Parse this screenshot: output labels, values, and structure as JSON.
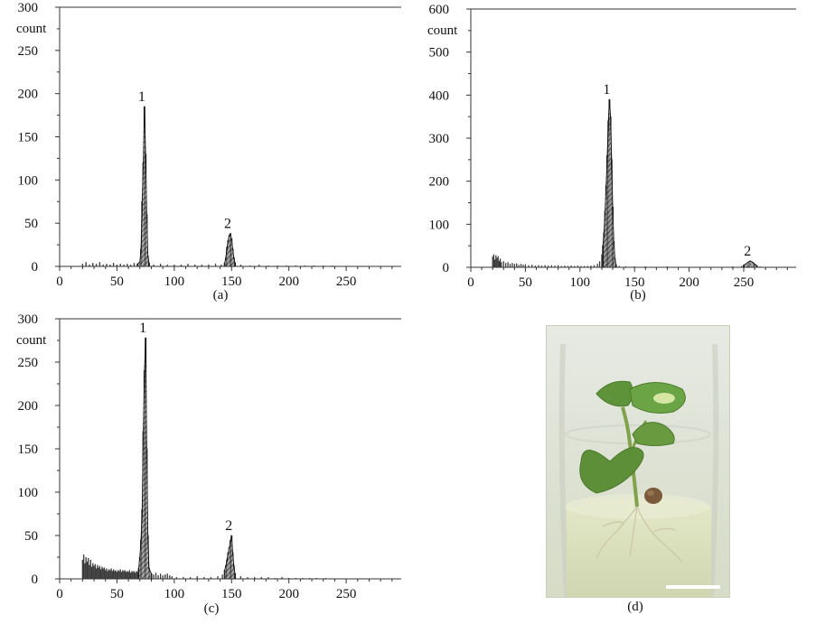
{
  "chart_data": [
    {
      "type": "bar",
      "panel": "(a)",
      "title": "",
      "xlabel": "",
      "ylabel": "count",
      "xlim": [
        0,
        298
      ],
      "ylim": [
        0,
        300
      ],
      "xticks": [
        0,
        50,
        100,
        150,
        200,
        250
      ],
      "yticks": [
        0,
        50,
        100,
        150,
        200,
        250,
        300
      ],
      "annotations": [
        {
          "label": "1",
          "x": 74,
          "y": 185
        },
        {
          "label": "2",
          "x": 149,
          "y": 38
        }
      ],
      "series": [
        {
          "values": [
            [
              20,
              3
            ],
            [
              23,
              5
            ],
            [
              26,
              2
            ],
            [
              29,
              4
            ],
            [
              32,
              3
            ],
            [
              35,
              5
            ],
            [
              38,
              2
            ],
            [
              41,
              3
            ],
            [
              44,
              2
            ],
            [
              47,
              4
            ],
            [
              50,
              2
            ],
            [
              53,
              3
            ],
            [
              56,
              2
            ],
            [
              59,
              3
            ],
            [
              62,
              2
            ],
            [
              65,
              4
            ],
            [
              68,
              3
            ],
            [
              70,
              5
            ],
            [
              71,
              20
            ],
            [
              72,
              75
            ],
            [
              73,
              120
            ],
            [
              74,
              185
            ],
            [
              75,
              130
            ],
            [
              76,
              60
            ],
            [
              77,
              12
            ],
            [
              78,
              4
            ],
            [
              82,
              2
            ],
            [
              88,
              3
            ],
            [
              94,
              2
            ],
            [
              100,
              2
            ],
            [
              106,
              2
            ],
            [
              112,
              3
            ],
            [
              118,
              2
            ],
            [
              124,
              2
            ],
            [
              130,
              2
            ],
            [
              136,
              3
            ],
            [
              141,
              2
            ],
            [
              144,
              4
            ],
            [
              145,
              10
            ],
            [
              146,
              22
            ],
            [
              147,
              30
            ],
            [
              148,
              36
            ],
            [
              149,
              38
            ],
            [
              150,
              32
            ],
            [
              151,
              20
            ],
            [
              152,
              10
            ],
            [
              153,
              4
            ],
            [
              158,
              2
            ],
            [
              166,
              1
            ],
            [
              174,
              2
            ],
            [
              182,
              1
            ],
            [
              190,
              1
            ],
            [
              198,
              1
            ],
            [
              206,
              1
            ],
            [
              214,
              1
            ],
            [
              222,
              1
            ],
            [
              230,
              1
            ],
            [
              238,
              1
            ]
          ]
        }
      ]
    },
    {
      "type": "bar",
      "panel": "(b)",
      "title": "",
      "xlabel": "",
      "ylabel": "count",
      "xlim": [
        0,
        298
      ],
      "ylim": [
        0,
        600
      ],
      "xticks": [
        0,
        50,
        100,
        150,
        200,
        250
      ],
      "yticks": [
        0,
        100,
        200,
        300,
        400,
        500,
        600
      ],
      "annotations": [
        {
          "label": "1",
          "x": 127,
          "y": 390
        },
        {
          "label": "2",
          "x": 256,
          "y": 15
        }
      ],
      "series": [
        {
          "values": [
            [
              20,
              25
            ],
            [
              21,
              30
            ],
            [
              22,
              18
            ],
            [
              23,
              28
            ],
            [
              24,
              22
            ],
            [
              25,
              26
            ],
            [
              26,
              15
            ],
            [
              27,
              20
            ],
            [
              28,
              12
            ],
            [
              30,
              14
            ],
            [
              32,
              10
            ],
            [
              34,
              12
            ],
            [
              36,
              8
            ],
            [
              38,
              10
            ],
            [
              40,
              8
            ],
            [
              42,
              9
            ],
            [
              44,
              6
            ],
            [
              46,
              8
            ],
            [
              48,
              6
            ],
            [
              50,
              7
            ],
            [
              53,
              5
            ],
            [
              56,
              6
            ],
            [
              59,
              4
            ],
            [
              62,
              5
            ],
            [
              65,
              4
            ],
            [
              68,
              5
            ],
            [
              71,
              4
            ],
            [
              74,
              5
            ],
            [
              77,
              4
            ],
            [
              80,
              5
            ],
            [
              83,
              3
            ],
            [
              86,
              4
            ],
            [
              89,
              3
            ],
            [
              92,
              4
            ],
            [
              95,
              3
            ],
            [
              98,
              4
            ],
            [
              101,
              3
            ],
            [
              104,
              3
            ],
            [
              107,
              3
            ],
            [
              110,
              4
            ],
            [
              113,
              5
            ],
            [
              116,
              8
            ],
            [
              118,
              14
            ],
            [
              120,
              30
            ],
            [
              121,
              50
            ],
            [
              122,
              80
            ],
            [
              123,
              130
            ],
            [
              124,
              190
            ],
            [
              125,
              260
            ],
            [
              126,
              340
            ],
            [
              127,
              390
            ],
            [
              128,
              350
            ],
            [
              129,
              250
            ],
            [
              130,
              140
            ],
            [
              131,
              60
            ],
            [
              132,
              20
            ],
            [
              133,
              6
            ],
            [
              136,
              3
            ],
            [
              142,
              2
            ],
            [
              150,
              2
            ],
            [
              160,
              2
            ],
            [
              170,
              1
            ],
            [
              180,
              2
            ],
            [
              190,
              1
            ],
            [
              200,
              1
            ],
            [
              210,
              1
            ],
            [
              220,
              1
            ],
            [
              230,
              1
            ],
            [
              240,
              2
            ],
            [
              248,
              3
            ],
            [
              250,
              5
            ],
            [
              252,
              8
            ],
            [
              254,
              12
            ],
            [
              256,
              15
            ],
            [
              258,
              12
            ],
            [
              260,
              8
            ],
            [
              262,
              4
            ],
            [
              265,
              2
            ]
          ]
        }
      ]
    },
    {
      "type": "bar",
      "panel": "(c)",
      "title": "",
      "xlabel": "",
      "ylabel": "count",
      "xlim": [
        0,
        298
      ],
      "ylim": [
        0,
        300
      ],
      "xticks": [
        0,
        50,
        100,
        150,
        200,
        250
      ],
      "yticks": [
        0,
        50,
        100,
        150,
        200,
        250,
        300
      ],
      "annotations": [
        {
          "label": "1",
          "x": 75,
          "y": 278
        },
        {
          "label": "2",
          "x": 150,
          "y": 50
        }
      ],
      "series": [
        {
          "values": [
            [
              20,
              22
            ],
            [
              21,
              28
            ],
            [
              22,
              18
            ],
            [
              23,
              25
            ],
            [
              24,
              20
            ],
            [
              25,
              24
            ],
            [
              26,
              16
            ],
            [
              27,
              22
            ],
            [
              28,
              14
            ],
            [
              29,
              18
            ],
            [
              30,
              15
            ],
            [
              31,
              17
            ],
            [
              32,
              12
            ],
            [
              33,
              16
            ],
            [
              34,
              13
            ],
            [
              35,
              15
            ],
            [
              36,
              11
            ],
            [
              37,
              14
            ],
            [
              38,
              12
            ],
            [
              39,
              13
            ],
            [
              40,
              10
            ],
            [
              41,
              12
            ],
            [
              42,
              9
            ],
            [
              43,
              11
            ],
            [
              44,
              10
            ],
            [
              45,
              12
            ],
            [
              46,
              9
            ],
            [
              47,
              11
            ],
            [
              48,
              9
            ],
            [
              49,
              10
            ],
            [
              50,
              8
            ],
            [
              51,
              10
            ],
            [
              52,
              9
            ],
            [
              53,
              11
            ],
            [
              54,
              8
            ],
            [
              55,
              10
            ],
            [
              56,
              9
            ],
            [
              57,
              10
            ],
            [
              58,
              8
            ],
            [
              59,
              9
            ],
            [
              60,
              8
            ],
            [
              61,
              10
            ],
            [
              62,
              7
            ],
            [
              63,
              9
            ],
            [
              64,
              8
            ],
            [
              65,
              9
            ],
            [
              66,
              7
            ],
            [
              67,
              9
            ],
            [
              68,
              8
            ],
            [
              69,
              12
            ],
            [
              70,
              25
            ],
            [
              71,
              45
            ],
            [
              72,
              80
            ],
            [
              73,
              170
            ],
            [
              74,
              240
            ],
            [
              75,
              278
            ],
            [
              76,
              150
            ],
            [
              77,
              50
            ],
            [
              78,
              12
            ],
            [
              80,
              6
            ],
            [
              82,
              5
            ],
            [
              84,
              7
            ],
            [
              86,
              4
            ],
            [
              88,
              6
            ],
            [
              90,
              4
            ],
            [
              92,
              5
            ],
            [
              94,
              6
            ],
            [
              96,
              4
            ],
            [
              98,
              3
            ],
            [
              102,
              2
            ],
            [
              108,
              2
            ],
            [
              114,
              2
            ],
            [
              120,
              3
            ],
            [
              126,
              2
            ],
            [
              132,
              2
            ],
            [
              138,
              3
            ],
            [
              142,
              5
            ],
            [
              144,
              10
            ],
            [
              145,
              15
            ],
            [
              146,
              22
            ],
            [
              147,
              30
            ],
            [
              148,
              36
            ],
            [
              149,
              44
            ],
            [
              150,
              50
            ],
            [
              151,
              30
            ],
            [
              152,
              15
            ],
            [
              153,
              6
            ],
            [
              158,
              3
            ],
            [
              164,
              2
            ],
            [
              170,
              2
            ],
            [
              176,
              2
            ],
            [
              182,
              2
            ],
            [
              188,
              1
            ],
            [
              194,
              2
            ],
            [
              200,
              1
            ],
            [
              206,
              1
            ],
            [
              212,
              1
            ],
            [
              218,
              1
            ],
            [
              224,
              1
            ],
            [
              232,
              1
            ]
          ]
        }
      ]
    }
  ],
  "panels": {
    "a": {
      "caption": "(a)",
      "unit": "count"
    },
    "b": {
      "caption": "(b)",
      "unit": "count"
    },
    "c": {
      "caption": "(c)",
      "unit": "count"
    },
    "d": {
      "caption": "(d)"
    }
  },
  "colors": {
    "baseline_bar": "#3a3a3a",
    "axis": "#333333",
    "photo_bg": "#dfe4d6",
    "leaf": "#5d8f38",
    "scale_bar": "#ffffff"
  }
}
